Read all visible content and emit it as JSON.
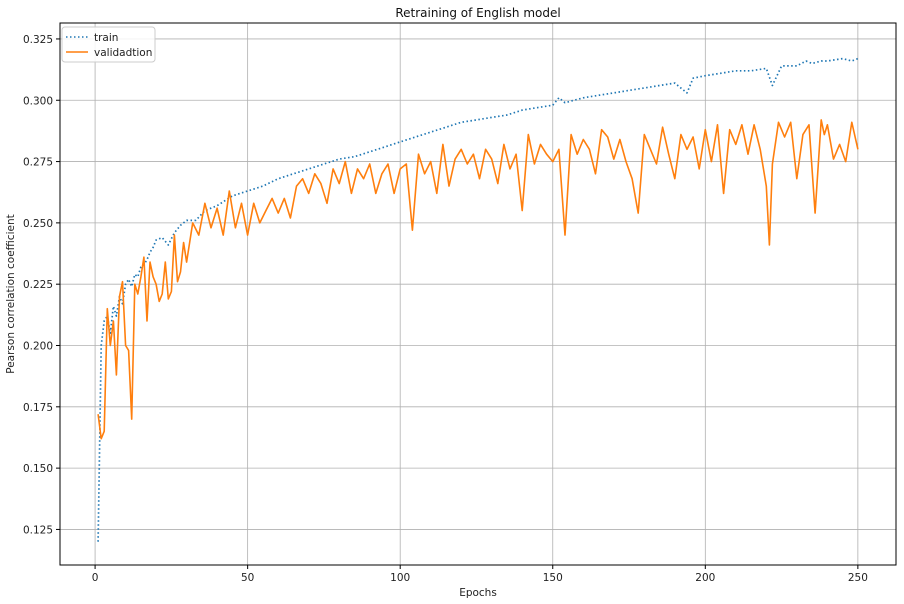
{
  "chart_data": {
    "type": "line",
    "title": "Retraining of English model",
    "xlabel": "Epochs",
    "ylabel": "Pearson correlation coefficient",
    "xlim": [
      -11.5,
      262.5
    ],
    "ylim": [
      0.1105,
      0.3315
    ],
    "xticks": [
      0,
      50,
      100,
      150,
      200,
      250
    ],
    "yticks": [
      0.125,
      0.15,
      0.175,
      0.2,
      0.225,
      0.25,
      0.275,
      0.3,
      0.325
    ],
    "grid": true,
    "legend_position": "top-left",
    "series": [
      {
        "name": "train",
        "color": "#1f77b4",
        "style": "dotted",
        "x": [
          1,
          2,
          3,
          4,
          5,
          6,
          7,
          8,
          9,
          10,
          11,
          12,
          13,
          14,
          15,
          16,
          17,
          18,
          19,
          20,
          22,
          24,
          26,
          28,
          30,
          33,
          36,
          40,
          45,
          50,
          55,
          60,
          65,
          70,
          75,
          80,
          85,
          90,
          95,
          100,
          105,
          110,
          115,
          120,
          125,
          130,
          135,
          140,
          145,
          150,
          152,
          154,
          160,
          165,
          170,
          175,
          180,
          185,
          190,
          194,
          196,
          200,
          205,
          210,
          215,
          220,
          222,
          225,
          230,
          233,
          235,
          238,
          240,
          245,
          248,
          250
        ],
        "values": [
          0.12,
          0.2,
          0.21,
          0.212,
          0.205,
          0.216,
          0.212,
          0.22,
          0.217,
          0.225,
          0.227,
          0.224,
          0.229,
          0.228,
          0.232,
          0.233,
          0.235,
          0.238,
          0.24,
          0.243,
          0.244,
          0.241,
          0.246,
          0.249,
          0.251,
          0.251,
          0.255,
          0.257,
          0.261,
          0.263,
          0.265,
          0.268,
          0.27,
          0.272,
          0.274,
          0.276,
          0.277,
          0.279,
          0.281,
          0.283,
          0.285,
          0.287,
          0.289,
          0.291,
          0.292,
          0.293,
          0.294,
          0.296,
          0.297,
          0.298,
          0.301,
          0.299,
          0.301,
          0.302,
          0.303,
          0.304,
          0.305,
          0.306,
          0.307,
          0.303,
          0.309,
          0.31,
          0.311,
          0.312,
          0.312,
          0.313,
          0.306,
          0.314,
          0.314,
          0.316,
          0.315,
          0.316,
          0.316,
          0.317,
          0.316,
          0.317
        ]
      },
      {
        "name": "validadtion",
        "color": "#ff7f0e",
        "style": "solid",
        "x": [
          1,
          2,
          3,
          4,
          5,
          6,
          7,
          8,
          9,
          10,
          11,
          12,
          13,
          14,
          15,
          16,
          17,
          18,
          19,
          20,
          21,
          22,
          23,
          24,
          25,
          26,
          27,
          28,
          29,
          30,
          32,
          34,
          36,
          38,
          40,
          42,
          44,
          46,
          48,
          50,
          52,
          54,
          56,
          58,
          60,
          62,
          64,
          66,
          68,
          70,
          72,
          74,
          76,
          78,
          80,
          82,
          84,
          86,
          88,
          90,
          92,
          94,
          96,
          98,
          100,
          102,
          104,
          106,
          108,
          110,
          112,
          114,
          116,
          118,
          120,
          122,
          124,
          126,
          128,
          130,
          132,
          134,
          136,
          138,
          140,
          142,
          144,
          146,
          148,
          150,
          152,
          154,
          156,
          158,
          160,
          162,
          164,
          166,
          168,
          170,
          172,
          174,
          176,
          178,
          180,
          182,
          184,
          186,
          188,
          190,
          192,
          194,
          196,
          198,
          200,
          202,
          204,
          206,
          208,
          210,
          212,
          214,
          216,
          218,
          220,
          221,
          222,
          224,
          226,
          228,
          230,
          232,
          234,
          236,
          238,
          239,
          240,
          242,
          244,
          246,
          248,
          250
        ],
        "values": [
          0.172,
          0.162,
          0.165,
          0.215,
          0.2,
          0.21,
          0.188,
          0.22,
          0.226,
          0.2,
          0.198,
          0.17,
          0.225,
          0.221,
          0.228,
          0.236,
          0.21,
          0.234,
          0.228,
          0.225,
          0.218,
          0.221,
          0.234,
          0.219,
          0.222,
          0.245,
          0.226,
          0.23,
          0.242,
          0.234,
          0.25,
          0.245,
          0.258,
          0.248,
          0.256,
          0.245,
          0.263,
          0.248,
          0.258,
          0.245,
          0.258,
          0.25,
          0.255,
          0.26,
          0.254,
          0.26,
          0.252,
          0.265,
          0.268,
          0.262,
          0.27,
          0.266,
          0.258,
          0.272,
          0.266,
          0.275,
          0.262,
          0.272,
          0.268,
          0.274,
          0.262,
          0.27,
          0.274,
          0.262,
          0.272,
          0.274,
          0.247,
          0.278,
          0.27,
          0.275,
          0.262,
          0.282,
          0.265,
          0.276,
          0.28,
          0.274,
          0.278,
          0.268,
          0.28,
          0.276,
          0.266,
          0.282,
          0.272,
          0.278,
          0.255,
          0.286,
          0.274,
          0.282,
          0.278,
          0.275,
          0.28,
          0.245,
          0.286,
          0.278,
          0.284,
          0.28,
          0.27,
          0.288,
          0.285,
          0.276,
          0.284,
          0.275,
          0.268,
          0.254,
          0.286,
          0.28,
          0.274,
          0.289,
          0.278,
          0.268,
          0.286,
          0.28,
          0.285,
          0.272,
          0.288,
          0.275,
          0.29,
          0.262,
          0.288,
          0.282,
          0.29,
          0.278,
          0.29,
          0.28,
          0.265,
          0.241,
          0.274,
          0.291,
          0.285,
          0.291,
          0.268,
          0.286,
          0.29,
          0.254,
          0.292,
          0.286,
          0.29,
          0.276,
          0.282,
          0.275,
          0.291,
          0.28
        ]
      }
    ]
  }
}
